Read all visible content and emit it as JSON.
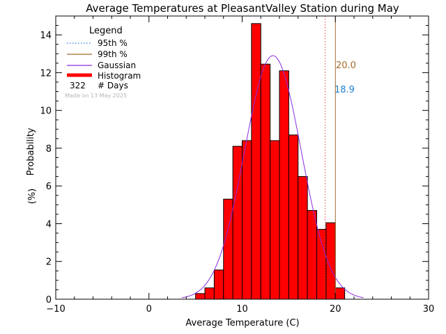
{
  "chart_data": {
    "type": "bar",
    "title": "Average Temperatures at PleasantValley Station during May",
    "xlabel": "Average Temperature (C)",
    "ylabel_line1": "Probability",
    "ylabel_line2": "(%)",
    "xlim": [
      -10,
      30
    ],
    "ylim": [
      0,
      15
    ],
    "x_ticks": [
      -10,
      0,
      10,
      20,
      30
    ],
    "y_ticks": [
      0,
      2,
      4,
      6,
      8,
      10,
      12,
      14
    ],
    "bin_width": 1,
    "histogram": [
      {
        "x0": 5,
        "value": 0.3
      },
      {
        "x0": 6,
        "value": 0.6
      },
      {
        "x0": 7,
        "value": 1.55
      },
      {
        "x0": 8,
        "value": 5.3
      },
      {
        "x0": 9,
        "value": 8.1
      },
      {
        "x0": 10,
        "value": 8.4
      },
      {
        "x0": 11,
        "value": 14.6
      },
      {
        "x0": 12,
        "value": 12.45
      },
      {
        "x0": 13,
        "value": 8.4
      },
      {
        "x0": 14,
        "value": 12.1
      },
      {
        "x0": 15,
        "value": 8.7
      },
      {
        "x0": 16,
        "value": 6.5
      },
      {
        "x0": 17,
        "value": 4.7
      },
      {
        "x0": 18,
        "value": 3.7
      },
      {
        "x0": 19,
        "value": 4.05
      },
      {
        "x0": 20,
        "value": 0.6
      }
    ],
    "gaussian": {
      "mean": 13.3,
      "sigma": 3.05,
      "peak": 12.9,
      "x_range": [
        3.5,
        23.0
      ]
    },
    "percentiles": {
      "p95": {
        "value": 18.9,
        "label": "18.9",
        "color": "#e8453c"
      },
      "p99": {
        "value": 20.0,
        "label": "20.0",
        "color": "#a0692a"
      }
    },
    "legend": {
      "title": "Legend",
      "items": [
        {
          "label": "95th %",
          "color": "#1e6fd9",
          "style": "dotted"
        },
        {
          "label": "99th %",
          "color": "#a0692a",
          "style": "solid"
        },
        {
          "label": "Gaussian",
          "color": "#8a2be2",
          "style": "solid"
        },
        {
          "label": "Histogram",
          "color": "#ff0000",
          "style": "thick"
        }
      ],
      "days_count": "322",
      "days_label": "# Days",
      "made_on": "Made on 13 May 2025"
    },
    "colors": {
      "bars": "#ff0000",
      "bar_edge": "#000000",
      "p95_label": "#1e7fd0",
      "p99_label": "#a0692a",
      "gaussian": "#8a2be2"
    }
  }
}
